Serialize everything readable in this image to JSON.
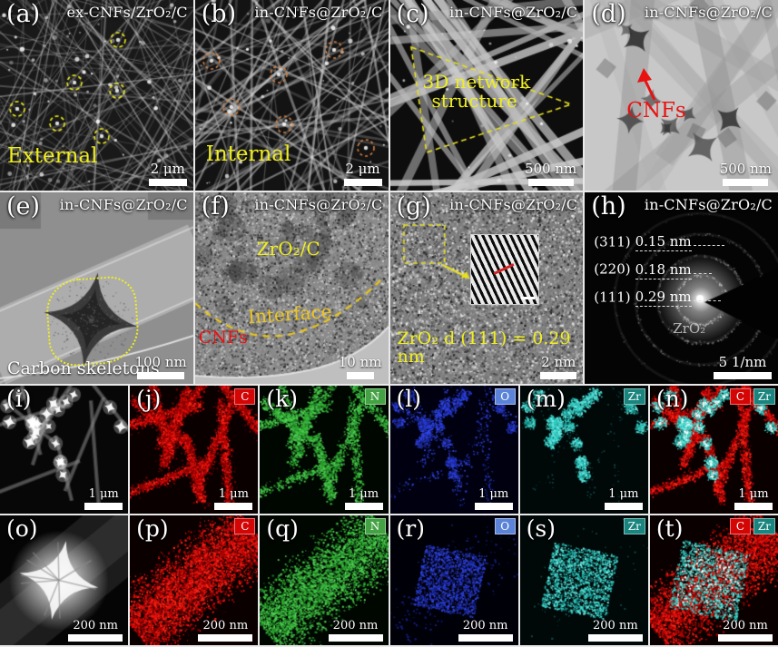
{
  "colors": {
    "annotation_yellow": "#f0ee1e",
    "annotation_red": "#e81212",
    "annotation_orange": "#d9813f",
    "interface_yellow": "#e9c41d",
    "badge_c_bg": "#d40505",
    "badge_n_bg": "#44a244",
    "badge_o_bg": "#5b84d9",
    "badge_zr_bg": "#19857e",
    "map_c": "#d40000",
    "map_n": "#2fae2f",
    "map_o": "#2433cc",
    "map_zr": "#35cfc6"
  },
  "panels": {
    "a": {
      "label": "(a)",
      "title": "ex-CNFs/ZrO₂/C",
      "annotation": "External",
      "scale_bar": "2 μm"
    },
    "b": {
      "label": "(b)",
      "title": "in-CNFs@ZrO₂/C",
      "annotation": "Internal",
      "scale_bar": "2 μm"
    },
    "c": {
      "label": "(c)",
      "title": "in-CNFs@ZrO₂/C",
      "annotation_line1": "3D network",
      "annotation_line2": "structure",
      "scale_bar": "500 nm"
    },
    "d": {
      "label": "(d)",
      "title": "in-CNFs@ZrO₂/C",
      "annotation": "CNFs",
      "scale_bar": "500 nm"
    },
    "e": {
      "label": "(e)",
      "title": "in-CNFs@ZrO₂/C",
      "annotation": "Carbon skeletons",
      "scale_bar": "100 nm"
    },
    "f": {
      "label": "(f)",
      "title": "in-CNFs@ZrO₂/C",
      "region_top": "ZrO₂/C",
      "region_interface": "Interface",
      "region_bottom": "CNFs",
      "scale_bar": "10 nm"
    },
    "g": {
      "label": "(g)",
      "title": "in-CNFs@ZrO₂/C",
      "annotation": "ZrO₂ d (111) = 0.29 nm",
      "scale_bar": "2 nm"
    },
    "h": {
      "label": "(h)",
      "title": "in-CNFs@ZrO₂/C",
      "rings": [
        {
          "plane": "(311)",
          "spacing": "0.15 nm"
        },
        {
          "plane": "(220)",
          "spacing": "0.18 nm"
        },
        {
          "plane": "(111)",
          "spacing": "0.29 nm"
        }
      ],
      "center_label": "ZrO₂",
      "scale_bar": "5 1/nm"
    },
    "i": {
      "label": "(i)",
      "scale_bar": "1 μm"
    },
    "j": {
      "label": "(j)",
      "element": "C",
      "scale_bar": "1 μm"
    },
    "k": {
      "label": "(k)",
      "element": "N",
      "scale_bar": "1 μm"
    },
    "l": {
      "label": "(l)",
      "element": "O",
      "scale_bar": "1 μm"
    },
    "m": {
      "label": "(m)",
      "element": "Zr",
      "scale_bar": "1 μm"
    },
    "n": {
      "label": "(n)",
      "elements": [
        "C",
        "Zr"
      ],
      "scale_bar": "1 μm"
    },
    "o": {
      "label": "(o)",
      "scale_bar": "200 nm"
    },
    "p": {
      "label": "(p)",
      "element": "C",
      "scale_bar": "200 nm"
    },
    "q": {
      "label": "(q)",
      "element": "N",
      "scale_bar": "200 nm"
    },
    "r": {
      "label": "(r)",
      "element": "O",
      "scale_bar": "200 nm"
    },
    "s": {
      "label": "(s)",
      "element": "Zr",
      "scale_bar": "200 nm"
    },
    "t": {
      "label": "(t)",
      "elements": [
        "C",
        "Zr"
      ],
      "scale_bar": "200 nm"
    }
  }
}
